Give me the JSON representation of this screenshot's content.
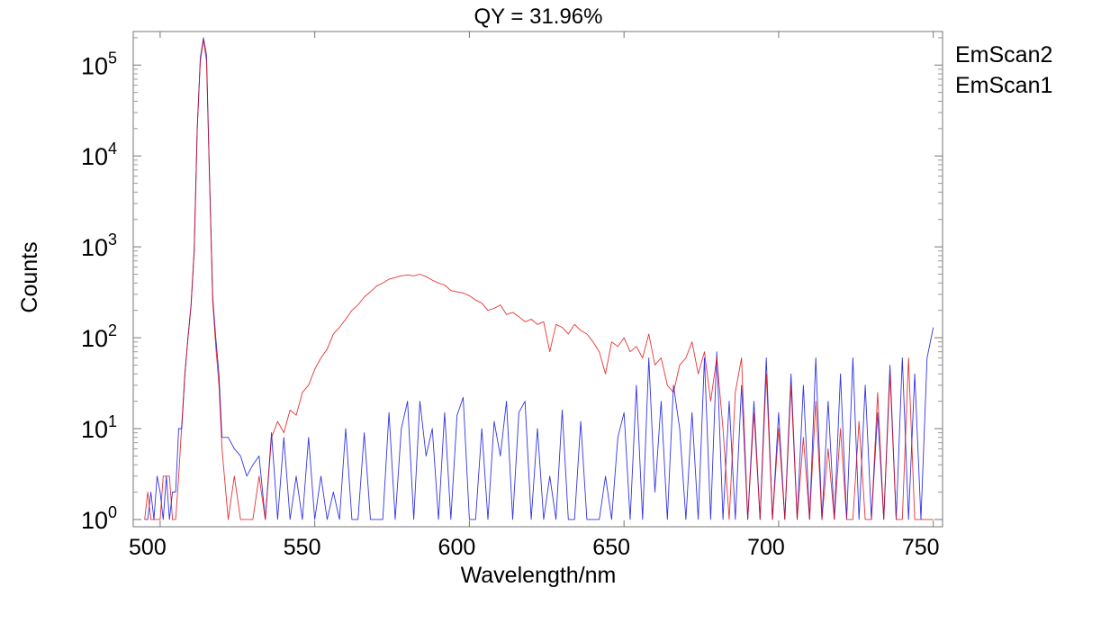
{
  "chart_data": {
    "type": "line",
    "title": "QY = 31.96%",
    "xlabel": "Wavelength/nm",
    "ylabel": "Counts",
    "xlim": [
      491.3,
      753
    ],
    "ylim": [
      1,
      234000
    ],
    "yscale": "log",
    "xticks": [
      500,
      550,
      600,
      650,
      700,
      750
    ],
    "xtick_labels": [
      "500",
      "550",
      "600",
      "650",
      "700",
      "750"
    ],
    "yticks": [
      1,
      10,
      100,
      1000,
      10000,
      100000
    ],
    "ytick_labels": [
      {
        "base": "10",
        "exp": "0"
      },
      {
        "base": "10",
        "exp": "1"
      },
      {
        "base": "10",
        "exp": "2"
      },
      {
        "base": "10",
        "exp": "3"
      },
      {
        "base": "10",
        "exp": "4"
      },
      {
        "base": "10",
        "exp": "5"
      }
    ],
    "grid": false,
    "legend_position": "outside-top-right",
    "series": [
      {
        "name": "EmScan2",
        "color": "#e00000",
        "points": [
          [
            495,
            1
          ],
          [
            496,
            2
          ],
          [
            497,
            1
          ],
          [
            498,
            1
          ],
          [
            499,
            1
          ],
          [
            500,
            1
          ],
          [
            501,
            3
          ],
          [
            502,
            3
          ],
          [
            503,
            3
          ],
          [
            504,
            1
          ],
          [
            505,
            1
          ],
          [
            506,
            3
          ],
          [
            507,
            11
          ],
          [
            508,
            40
          ],
          [
            509,
            100
          ],
          [
            510,
            220
          ],
          [
            511,
            900
          ],
          [
            512,
            20000
          ],
          [
            513,
            110000
          ],
          [
            514,
            190000
          ],
          [
            515,
            110000
          ],
          [
            516,
            5000
          ],
          [
            517,
            250
          ],
          [
            518,
            80
          ],
          [
            519,
            30
          ],
          [
            520,
            6
          ],
          [
            522,
            1
          ],
          [
            524,
            3
          ],
          [
            526,
            1
          ],
          [
            528,
            1
          ],
          [
            530,
            1
          ],
          [
            532,
            3
          ],
          [
            534,
            1
          ],
          [
            536,
            8
          ],
          [
            538,
            12
          ],
          [
            540,
            9
          ],
          [
            542,
            16
          ],
          [
            544,
            14
          ],
          [
            546,
            25
          ],
          [
            548,
            30
          ],
          [
            550,
            45
          ],
          [
            552,
            60
          ],
          [
            554,
            75
          ],
          [
            556,
            110
          ],
          [
            558,
            130
          ],
          [
            560,
            160
          ],
          [
            562,
            200
          ],
          [
            564,
            230
          ],
          [
            566,
            280
          ],
          [
            568,
            320
          ],
          [
            570,
            370
          ],
          [
            572,
            400
          ],
          [
            574,
            440
          ],
          [
            576,
            460
          ],
          [
            578,
            480
          ],
          [
            580,
            490
          ],
          [
            582,
            480
          ],
          [
            584,
            500
          ],
          [
            586,
            470
          ],
          [
            588,
            430
          ],
          [
            590,
            400
          ],
          [
            592,
            380
          ],
          [
            594,
            330
          ],
          [
            596,
            320
          ],
          [
            598,
            310
          ],
          [
            600,
            290
          ],
          [
            602,
            260
          ],
          [
            604,
            240
          ],
          [
            606,
            200
          ],
          [
            608,
            210
          ],
          [
            610,
            230
          ],
          [
            612,
            180
          ],
          [
            614,
            190
          ],
          [
            616,
            170
          ],
          [
            618,
            150
          ],
          [
            620,
            160
          ],
          [
            622,
            140
          ],
          [
            624,
            150
          ],
          [
            626,
            70
          ],
          [
            628,
            140
          ],
          [
            630,
            130
          ],
          [
            632,
            110
          ],
          [
            634,
            140
          ],
          [
            636,
            120
          ],
          [
            638,
            110
          ],
          [
            640,
            90
          ],
          [
            642,
            70
          ],
          [
            644,
            40
          ],
          [
            646,
            90
          ],
          [
            648,
            80
          ],
          [
            650,
            100
          ],
          [
            652,
            70
          ],
          [
            654,
            80
          ],
          [
            656,
            60
          ],
          [
            658,
            110
          ],
          [
            660,
            50
          ],
          [
            662,
            60
          ],
          [
            664,
            30
          ],
          [
            666,
            25
          ],
          [
            668,
            50
          ],
          [
            670,
            60
          ],
          [
            672,
            90
          ],
          [
            674,
            40
          ],
          [
            676,
            70
          ],
          [
            678,
            20
          ],
          [
            680,
            60
          ],
          [
            682,
            10
          ],
          [
            684,
            1
          ],
          [
            686,
            25
          ],
          [
            688,
            60
          ],
          [
            690,
            1
          ],
          [
            692,
            15
          ],
          [
            694,
            1
          ],
          [
            696,
            40
          ],
          [
            698,
            1
          ],
          [
            700,
            10
          ],
          [
            702,
            1
          ],
          [
            704,
            30
          ],
          [
            706,
            1
          ],
          [
            708,
            8
          ],
          [
            710,
            1
          ],
          [
            712,
            20
          ],
          [
            714,
            1
          ],
          [
            716,
            6
          ],
          [
            718,
            1
          ],
          [
            720,
            10
          ],
          [
            722,
            1
          ],
          [
            724,
            1
          ],
          [
            726,
            12
          ],
          [
            728,
            1
          ],
          [
            730,
            1
          ],
          [
            732,
            25
          ],
          [
            734,
            1
          ],
          [
            736,
            40
          ],
          [
            738,
            1
          ],
          [
            740,
            1
          ],
          [
            742,
            60
          ],
          [
            744,
            1
          ],
          [
            746,
            1
          ],
          [
            748,
            1
          ],
          [
            750,
            1
          ]
        ]
      },
      {
        "name": "EmScan1",
        "color": "#0000e0",
        "points": [
          [
            495,
            1
          ],
          [
            496,
            1
          ],
          [
            497,
            2
          ],
          [
            498,
            1
          ],
          [
            499,
            3
          ],
          [
            500,
            2
          ],
          [
            501,
            1
          ],
          [
            502,
            3
          ],
          [
            503,
            1
          ],
          [
            504,
            2
          ],
          [
            505,
            2
          ],
          [
            506,
            10
          ],
          [
            507,
            10
          ],
          [
            508,
            40
          ],
          [
            509,
            100
          ],
          [
            510,
            230
          ],
          [
            511,
            900
          ],
          [
            512,
            20000
          ],
          [
            513,
            120000
          ],
          [
            514,
            200000
          ],
          [
            515,
            130000
          ],
          [
            516,
            5000
          ],
          [
            517,
            280
          ],
          [
            518,
            100
          ],
          [
            519,
            40
          ],
          [
            520,
            8
          ],
          [
            522,
            8
          ],
          [
            524,
            6
          ],
          [
            526,
            5
          ],
          [
            528,
            3
          ],
          [
            530,
            4
          ],
          [
            532,
            5
          ],
          [
            534,
            1
          ],
          [
            536,
            9
          ],
          [
            538,
            1
          ],
          [
            540,
            8
          ],
          [
            542,
            1
          ],
          [
            544,
            3
          ],
          [
            546,
            1
          ],
          [
            548,
            8
          ],
          [
            550,
            1
          ],
          [
            552,
            3
          ],
          [
            554,
            1
          ],
          [
            556,
            2
          ],
          [
            558,
            1
          ],
          [
            560,
            10
          ],
          [
            562,
            1
          ],
          [
            564,
            1
          ],
          [
            566,
            9
          ],
          [
            568,
            1
          ],
          [
            570,
            1
          ],
          [
            572,
            1
          ],
          [
            574,
            15
          ],
          [
            576,
            1
          ],
          [
            578,
            10
          ],
          [
            580,
            20
          ],
          [
            582,
            1
          ],
          [
            584,
            20
          ],
          [
            586,
            5
          ],
          [
            588,
            10
          ],
          [
            590,
            1
          ],
          [
            592,
            15
          ],
          [
            594,
            1
          ],
          [
            596,
            14
          ],
          [
            598,
            22
          ],
          [
            600,
            1
          ],
          [
            602,
            1
          ],
          [
            604,
            10
          ],
          [
            606,
            1
          ],
          [
            608,
            12
          ],
          [
            610,
            5
          ],
          [
            612,
            20
          ],
          [
            614,
            1
          ],
          [
            616,
            15
          ],
          [
            618,
            20
          ],
          [
            620,
            1
          ],
          [
            622,
            10
          ],
          [
            624,
            1
          ],
          [
            626,
            3
          ],
          [
            628,
            1
          ],
          [
            630,
            16
          ],
          [
            632,
            1
          ],
          [
            634,
            1
          ],
          [
            636,
            12
          ],
          [
            638,
            1
          ],
          [
            640,
            1
          ],
          [
            642,
            1
          ],
          [
            644,
            3
          ],
          [
            646,
            1
          ],
          [
            648,
            8
          ],
          [
            650,
            15
          ],
          [
            652,
            1
          ],
          [
            654,
            30
          ],
          [
            656,
            1
          ],
          [
            658,
            60
          ],
          [
            660,
            2
          ],
          [
            662,
            20
          ],
          [
            664,
            1
          ],
          [
            666,
            30
          ],
          [
            668,
            10
          ],
          [
            670,
            1
          ],
          [
            672,
            15
          ],
          [
            674,
            1
          ],
          [
            676,
            60
          ],
          [
            678,
            1
          ],
          [
            680,
            70
          ],
          [
            682,
            1
          ],
          [
            684,
            20
          ],
          [
            686,
            1
          ],
          [
            688,
            30
          ],
          [
            690,
            1
          ],
          [
            692,
            20
          ],
          [
            694,
            1
          ],
          [
            696,
            60
          ],
          [
            698,
            1
          ],
          [
            700,
            15
          ],
          [
            702,
            1
          ],
          [
            704,
            40
          ],
          [
            706,
            1
          ],
          [
            708,
            30
          ],
          [
            710,
            1
          ],
          [
            712,
            60
          ],
          [
            714,
            1
          ],
          [
            716,
            20
          ],
          [
            718,
            1
          ],
          [
            720,
            40
          ],
          [
            722,
            1
          ],
          [
            724,
            60
          ],
          [
            726,
            1
          ],
          [
            728,
            30
          ],
          [
            730,
            1
          ],
          [
            732,
            15
          ],
          [
            734,
            1
          ],
          [
            736,
            50
          ],
          [
            738,
            1
          ],
          [
            740,
            60
          ],
          [
            742,
            1
          ],
          [
            744,
            40
          ],
          [
            746,
            1
          ],
          [
            748,
            60
          ],
          [
            750,
            130
          ]
        ]
      }
    ]
  }
}
